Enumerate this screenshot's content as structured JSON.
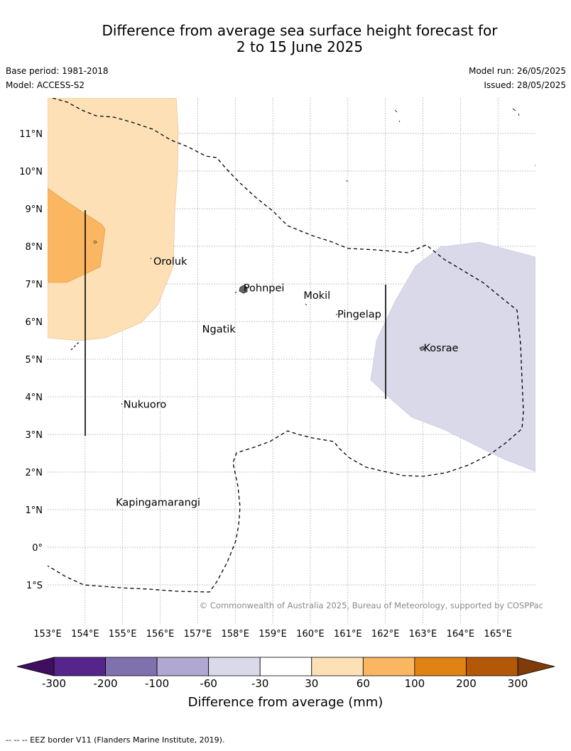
{
  "title_line1": "Difference from average sea surface height forecast for",
  "title_line2": "2 to 15 June 2025",
  "base_period": "Base period: 1981-2018",
  "model": "Model: ACCESS-S2",
  "model_run": "Model run: 26/05/2025",
  "issued": "Issued: 28/05/2025",
  "copyright": "© Commonwealth of Australia 2025, Bureau of Meteorology, supported by COSPPac",
  "lon_labels": [
    "153°E",
    "154°E",
    "155°E",
    "156°E",
    "157°E",
    "158°E",
    "159°E",
    "160°E",
    "161°E",
    "162°E",
    "163°E",
    "164°E",
    "165°E"
  ],
  "lat_labels": [
    "11°N",
    "10°N",
    "9°N",
    "8°N",
    "7°N",
    "6°N",
    "5°N",
    "4°N",
    "3°N",
    "2°N",
    "1°N",
    "0°",
    "1°S"
  ],
  "places": [
    {
      "name": "Oroluk",
      "lon": 155.8,
      "lat": 7.6
    },
    {
      "name": "Pohnpei",
      "lon": 158.2,
      "lat": 6.9
    },
    {
      "name": "Mokil",
      "lon": 159.8,
      "lat": 6.7
    },
    {
      "name": "Pingelap",
      "lon": 160.7,
      "lat": 6.2
    },
    {
      "name": "Ngatik",
      "lon": 157.1,
      "lat": 5.8
    },
    {
      "name": "Kosrae",
      "lon": 163.0,
      "lat": 5.3
    },
    {
      "name": "Nukuoro",
      "lon": 155.0,
      "lat": 3.8
    },
    {
      "name": "Kapingamarangi",
      "lon": 154.8,
      "lat": 1.2
    }
  ],
  "colorbar": {
    "title": "Difference from average (mm)",
    "ticks": [
      "-300",
      "-200",
      "-100",
      "-60",
      "-30",
      "30",
      "60",
      "100",
      "200",
      "300"
    ],
    "colors": [
      "#3f0e5e",
      "#55258b",
      "#7e71ae",
      "#b0a8d1",
      "#d9d9ea",
      "#ffffff",
      "#fde0b6",
      "#fbb661",
      "#e08214",
      "#b35806",
      "#7f3b08"
    ]
  },
  "footer": "-- -- -- EEZ border V11 (Flanders Marine Institute, 2019)."
}
